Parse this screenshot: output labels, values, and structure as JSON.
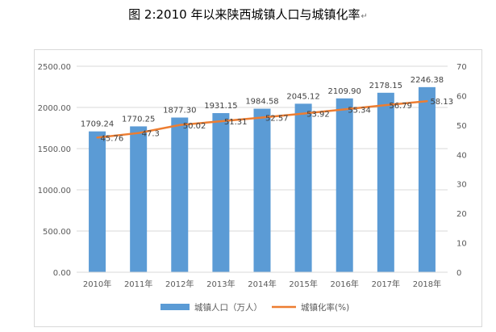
{
  "caption": "图 2:2010 年以来陕西城镇人口与城镇化率",
  "return_mark": "↵",
  "colors": {
    "bar": "#5b9bd5",
    "line": "#ed7d31",
    "grid": "#d9d9d9",
    "axis_text": "#595959",
    "label_text": "#404040"
  },
  "chart_data": {
    "type": "bar",
    "title": "",
    "xlabel": "",
    "ylabel": "",
    "categories": [
      "2010年",
      "2011年",
      "2012年",
      "2013年",
      "2014年",
      "2015年",
      "2016年",
      "2017年",
      "2018年"
    ],
    "series": [
      {
        "name": "城镇人口（万人）",
        "type": "bar",
        "axis": "left",
        "values": [
          1709.24,
          1770.25,
          1877.3,
          1931.15,
          1984.58,
          2045.12,
          2109.9,
          2178.15,
          2246.38
        ],
        "labels": [
          "1709.24",
          "1770.25",
          "1877.30",
          "1931.15",
          "1984.58",
          "2045.12",
          "2109.90",
          "2178.15",
          "2246.38"
        ]
      },
      {
        "name": "城镇化率(%)",
        "type": "line",
        "axis": "right",
        "values": [
          45.76,
          47.3,
          50.02,
          51.31,
          52.57,
          53.92,
          55.34,
          56.79,
          58.13
        ],
        "labels": [
          "45.76",
          "47.3",
          "50.02",
          "51.31",
          "52.57",
          "53.92",
          "55.34",
          "56.79",
          "58.13"
        ]
      }
    ],
    "y_left": {
      "ylim": [
        0,
        2500
      ],
      "ticks": [
        0,
        500,
        1000,
        1500,
        2000,
        2500
      ],
      "tick_labels": [
        "0.00",
        "500.00",
        "1000.00",
        "1500.00",
        "2000.00",
        "2500.00"
      ]
    },
    "y_right": {
      "ylim": [
        0,
        70
      ],
      "ticks": [
        0,
        10,
        20,
        30,
        40,
        50,
        60,
        70
      ],
      "tick_labels": [
        "0",
        "10",
        "20",
        "30",
        "40",
        "50",
        "60",
        "70"
      ]
    },
    "grid": true,
    "legend_position": "bottom"
  }
}
